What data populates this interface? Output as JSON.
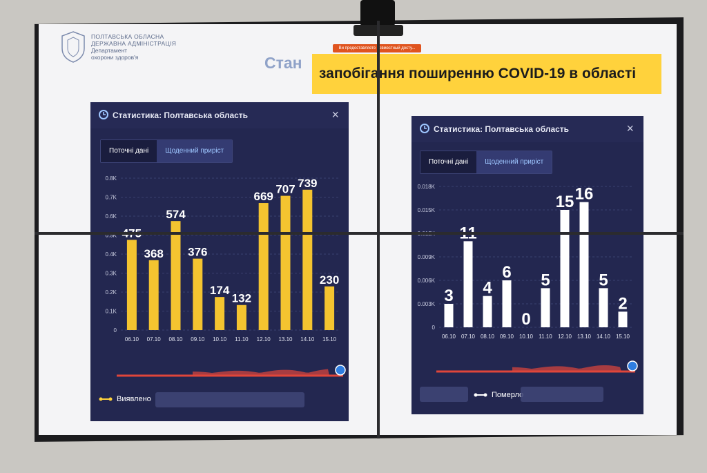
{
  "header": {
    "org_line1": "ПОЛТАВСЬКА ОБЛАСНА",
    "org_line2": "ДЕРЖАВНА АДМІНІСТРАЦІЯ",
    "dept_line1": "Департамент",
    "dept_line2": "охорони здоров'я",
    "title_prefix": "Стан",
    "title_highlight": "запобігання поширенню COVID-19 в області",
    "share_banner": "Ви предоставляете совместный досту..."
  },
  "panels": [
    {
      "title": "Статистика: Полтавська область",
      "close": "×",
      "tabs": [
        "Поточні дані",
        "Щоденний приріст"
      ],
      "legend": "Виявлено"
    },
    {
      "title": "Статистика: Полтавська область",
      "close": "×",
      "tabs": [
        "Поточні дані",
        "Щоденний приріст"
      ],
      "legend": "Померло"
    }
  ],
  "colors": {
    "yellow": "#ffd23c",
    "bar_yellow": "#f4c430",
    "bar_white": "#ffffff",
    "panel_bg": "#232750",
    "timeline_red": "#e0463a"
  },
  "chart_data": [
    {
      "type": "bar",
      "categories": [
        "06.10",
        "07.10",
        "08.10",
        "09.10",
        "10.10",
        "11.10",
        "12.10",
        "13.10",
        "14.10",
        "15.10"
      ],
      "values": [
        475,
        368,
        574,
        376,
        174,
        132,
        669,
        707,
        739,
        230
      ],
      "data_labels": [
        "475",
        "368",
        "574",
        "376",
        "174",
        "132",
        "669",
        "707",
        "739",
        "230"
      ],
      "yticks": [
        "0",
        "0.1K",
        "0.2K",
        "0.3K",
        "0.4K",
        "0.5K",
        "0.6K",
        "0.7K",
        "0.8K"
      ],
      "ylim": [
        0,
        800
      ],
      "grid": true
    },
    {
      "type": "bar",
      "categories": [
        "06.10",
        "07.10",
        "08.10",
        "09.10",
        "10.10",
        "11.10",
        "12.10",
        "13.10",
        "14.10",
        "15.10"
      ],
      "values": [
        3,
        11,
        4,
        6,
        0,
        5,
        15,
        16,
        5,
        2
      ],
      "data_labels": [
        "3",
        "11",
        "4",
        "6",
        "0",
        "5",
        "15",
        "16",
        "5",
        "2"
      ],
      "yticks": [
        "0",
        "0.003K",
        "0.006K",
        "0.009K",
        "0.012K",
        "0.015K",
        "0.018K"
      ],
      "ylim": [
        0,
        18
      ],
      "grid": true
    }
  ]
}
